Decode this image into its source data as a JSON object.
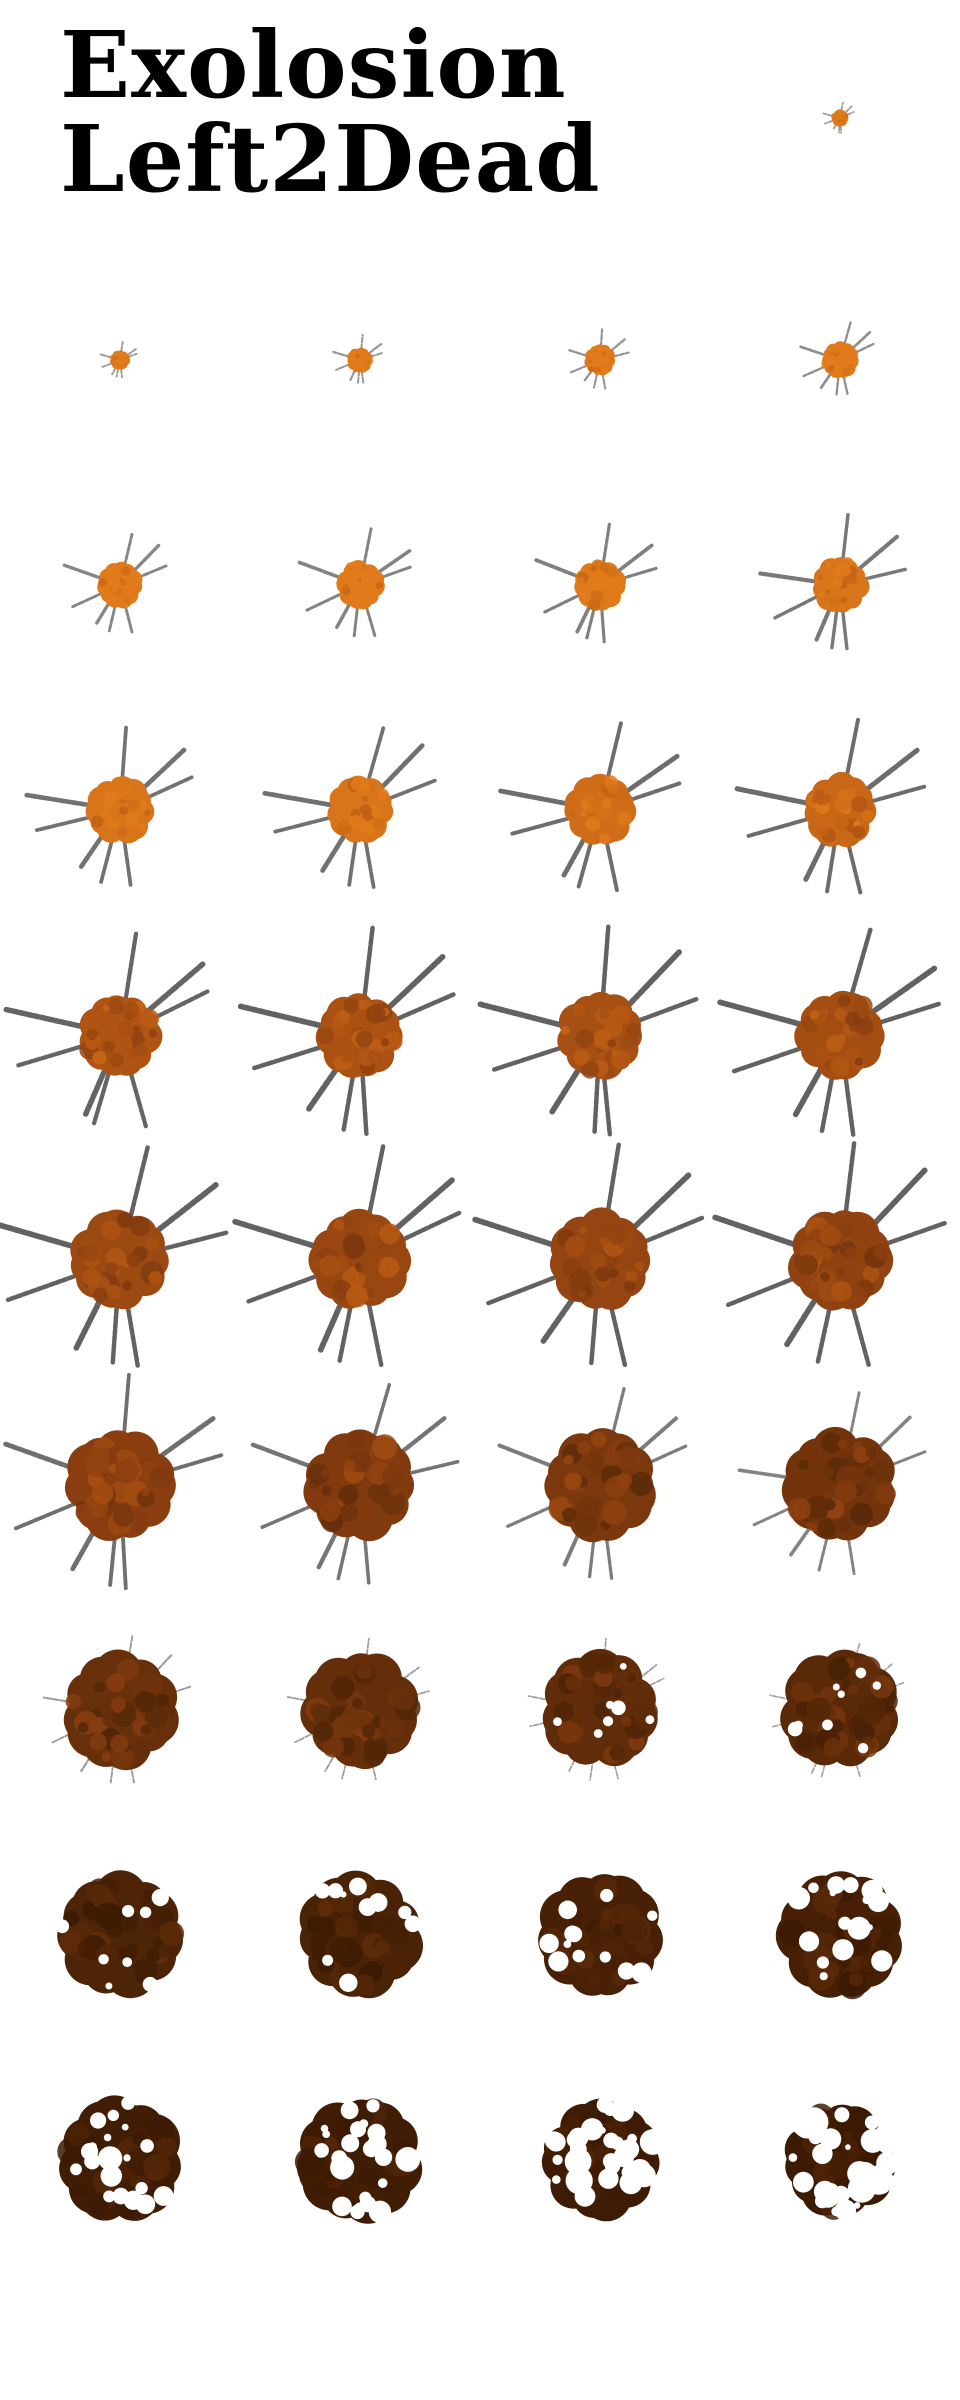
{
  "title": {
    "line1": "Exolosion",
    "line2": "Left2Dead"
  },
  "sprite_sheet": {
    "frame_count": 37,
    "columns": 4,
    "colors": {
      "fire_orange": "#e07a1a",
      "fire_dark_orange": "#b85a14",
      "ember_brown": "#8a3e10",
      "char_brown": "#5a2a08",
      "burnt_dark": "#3c1a04",
      "smoke_gray": "#5a5a5a"
    },
    "frames": [
      {
        "size": 0.12,
        "sparks": 0.1,
        "tone": 0.0,
        "holes": 0.0
      },
      {
        "size": 0.14,
        "sparks": 0.12,
        "tone": 0.0,
        "holes": 0.0
      },
      {
        "size": 0.18,
        "sparks": 0.18,
        "tone": 0.0,
        "holes": 0.0
      },
      {
        "size": 0.22,
        "sparks": 0.22,
        "tone": 0.0,
        "holes": 0.0
      },
      {
        "size": 0.26,
        "sparks": 0.3,
        "tone": 0.0,
        "holes": 0.0
      },
      {
        "size": 0.32,
        "sparks": 0.45,
        "tone": 0.0,
        "holes": 0.0
      },
      {
        "size": 0.34,
        "sparks": 0.5,
        "tone": 0.0,
        "holes": 0.0
      },
      {
        "size": 0.36,
        "sparks": 0.55,
        "tone": 0.0,
        "holes": 0.0
      },
      {
        "size": 0.4,
        "sparks": 0.65,
        "tone": 0.05,
        "holes": 0.0
      },
      {
        "size": 0.48,
        "sparks": 0.75,
        "tone": 0.05,
        "holes": 0.0
      },
      {
        "size": 0.48,
        "sparks": 0.78,
        "tone": 0.05,
        "holes": 0.0
      },
      {
        "size": 0.5,
        "sparks": 0.82,
        "tone": 0.1,
        "holes": 0.0
      },
      {
        "size": 0.52,
        "sparks": 0.85,
        "tone": 0.15,
        "holes": 0.0
      },
      {
        "size": 0.58,
        "sparks": 0.95,
        "tone": 0.3,
        "holes": 0.0
      },
      {
        "size": 0.6,
        "sparks": 1.0,
        "tone": 0.32,
        "holes": 0.0
      },
      {
        "size": 0.61,
        "sparks": 1.0,
        "tone": 0.34,
        "holes": 0.0
      },
      {
        "size": 0.62,
        "sparks": 1.0,
        "tone": 0.36,
        "holes": 0.0
      },
      {
        "size": 0.7,
        "sparks": 1.0,
        "tone": 0.4,
        "holes": 0.0
      },
      {
        "size": 0.7,
        "sparks": 1.0,
        "tone": 0.42,
        "holes": 0.0
      },
      {
        "size": 0.71,
        "sparks": 1.0,
        "tone": 0.44,
        "holes": 0.0
      },
      {
        "size": 0.72,
        "sparks": 1.0,
        "tone": 0.46,
        "holes": 0.0
      },
      {
        "size": 0.78,
        "sparks": 0.8,
        "tone": 0.5,
        "holes": 0.0
      },
      {
        "size": 0.78,
        "sparks": 0.7,
        "tone": 0.55,
        "holes": 0.0
      },
      {
        "size": 0.79,
        "sparks": 0.6,
        "tone": 0.58,
        "holes": 0.0
      },
      {
        "size": 0.8,
        "sparks": 0.5,
        "tone": 0.62,
        "holes": 0.0
      },
      {
        "size": 0.82,
        "sparks": 0.15,
        "tone": 0.68,
        "holes": 0.0
      },
      {
        "size": 0.82,
        "sparks": 0.1,
        "tone": 0.7,
        "holes": 0.0
      },
      {
        "size": 0.83,
        "sparks": 0.08,
        "tone": 0.72,
        "holes": 0.02
      },
      {
        "size": 0.84,
        "sparks": 0.05,
        "tone": 0.75,
        "holes": 0.04
      },
      {
        "size": 0.88,
        "sparks": 0.0,
        "tone": 0.85,
        "holes": 0.06
      },
      {
        "size": 0.88,
        "sparks": 0.0,
        "tone": 0.88,
        "holes": 0.1
      },
      {
        "size": 0.88,
        "sparks": 0.0,
        "tone": 0.9,
        "holes": 0.16
      },
      {
        "size": 0.88,
        "sparks": 0.0,
        "tone": 0.92,
        "holes": 0.26
      },
      {
        "size": 0.88,
        "sparks": 0.0,
        "tone": 0.95,
        "holes": 0.34
      },
      {
        "size": 0.88,
        "sparks": 0.0,
        "tone": 0.96,
        "holes": 0.42
      },
      {
        "size": 0.84,
        "sparks": 0.0,
        "tone": 0.98,
        "holes": 0.55
      },
      {
        "size": 0.8,
        "sparks": 0.0,
        "tone": 1.0,
        "holes": 0.7
      }
    ]
  }
}
